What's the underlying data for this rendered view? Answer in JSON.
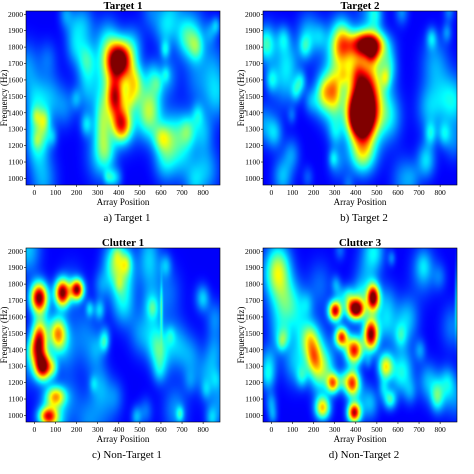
{
  "panels": [
    {
      "title": "Target 1",
      "caption": "a) Target 1",
      "xlabel": "Array Position",
      "ylabel": "Frequency (Hz)",
      "chart_data": {
        "type": "heatmap",
        "title": "Target 1",
        "xlabel": "Array Position",
        "ylabel": "Frequency (Hz)",
        "xticks": [
          0,
          100,
          200,
          300,
          400,
          500,
          600,
          700,
          800
        ],
        "yticks": [
          1000,
          1100,
          1200,
          1300,
          1400,
          1500,
          1600,
          1700,
          1800,
          1900,
          2000
        ],
        "xlim": [
          -40,
          880
        ],
        "ylim": [
          960,
          2020
        ],
        "colormap": "jet",
        "blobs": [
          {
            "x": 400,
            "y": 1720,
            "sx": 55,
            "sy": 110,
            "v": 0.95
          },
          {
            "x": 380,
            "y": 1500,
            "sx": 40,
            "sy": 120,
            "v": 0.7
          },
          {
            "x": 410,
            "y": 1330,
            "sx": 45,
            "sy": 100,
            "v": 0.6
          },
          {
            "x": 470,
            "y": 1580,
            "sx": 45,
            "sy": 120,
            "v": 0.45
          },
          {
            "x": 540,
            "y": 1400,
            "sx": 55,
            "sy": 150,
            "v": 0.4
          },
          {
            "x": 320,
            "y": 1350,
            "sx": 40,
            "sy": 200,
            "v": 0.35
          },
          {
            "x": 600,
            "y": 1250,
            "sx": 40,
            "sy": 80,
            "v": 0.25
          },
          {
            "x": 250,
            "y": 1600,
            "sx": 50,
            "sy": 200,
            "v": 0.2
          }
        ]
      }
    },
    {
      "title": "Target 2",
      "caption": "b) Target 2",
      "xlabel": "Array Position",
      "ylabel": "Frequency (Hz)",
      "chart_data": {
        "type": "heatmap",
        "title": "Target 2",
        "xlabel": "Array Position",
        "ylabel": "Frequency (Hz)",
        "xticks": [
          0,
          100,
          200,
          300,
          400,
          500,
          600,
          700,
          800
        ],
        "yticks": [
          1000,
          1100,
          1200,
          1300,
          1400,
          1500,
          1600,
          1700,
          1800,
          1900,
          2000
        ],
        "xlim": [
          -40,
          880
        ],
        "ylim": [
          960,
          2020
        ],
        "colormap": "jet",
        "blobs": [
          {
            "x": 440,
            "y": 1500,
            "sx": 85,
            "sy": 230,
            "v": 0.8
          },
          {
            "x": 450,
            "y": 1820,
            "sx": 80,
            "sy": 80,
            "v": 0.9
          },
          {
            "x": 420,
            "y": 1380,
            "sx": 55,
            "sy": 120,
            "v": 0.95
          },
          {
            "x": 430,
            "y": 1150,
            "sx": 60,
            "sy": 120,
            "v": 0.35
          },
          {
            "x": 300,
            "y": 1550,
            "sx": 30,
            "sy": 120,
            "v": 0.2
          }
        ]
      }
    },
    {
      "title": "Clutter 1",
      "caption": "c) Non-Target 1",
      "xlabel": "Array Position",
      "ylabel": "Frequency (Hz)",
      "chart_data": {
        "type": "heatmap",
        "title": "Clutter 1",
        "xlabel": "Array Position",
        "ylabel": "Frequency (Hz)",
        "xticks": [
          0,
          100,
          200,
          300,
          400,
          500,
          600,
          700,
          800
        ],
        "yticks": [
          1000,
          1100,
          1200,
          1300,
          1400,
          1500,
          1600,
          1700,
          1800,
          1900,
          2000
        ],
        "xlim": [
          -40,
          880
        ],
        "ylim": [
          960,
          2020
        ],
        "colormap": "jet",
        "blobs": [
          {
            "x": 20,
            "y": 1720,
            "sx": 40,
            "sy": 90,
            "v": 0.9
          },
          {
            "x": 130,
            "y": 1750,
            "sx": 35,
            "sy": 80,
            "v": 0.85
          },
          {
            "x": 200,
            "y": 1770,
            "sx": 30,
            "sy": 60,
            "v": 0.8
          },
          {
            "x": 20,
            "y": 1450,
            "sx": 35,
            "sy": 120,
            "v": 0.75
          },
          {
            "x": 40,
            "y": 1300,
            "sx": 40,
            "sy": 80,
            "v": 0.85
          },
          {
            "x": 110,
            "y": 1500,
            "sx": 40,
            "sy": 100,
            "v": 0.55
          },
          {
            "x": 100,
            "y": 1120,
            "sx": 45,
            "sy": 60,
            "v": 0.45
          },
          {
            "x": 60,
            "y": 1000,
            "sx": 40,
            "sy": 50,
            "v": 0.5
          },
          {
            "x": 600,
            "y": 1650,
            "sx": 6,
            "sy": 150,
            "v": 0.2
          }
        ]
      }
    },
    {
      "title": "Clutter 3",
      "caption": "d) Non-Target 2",
      "xlabel": "Array Position",
      "ylabel": "Frequency (Hz)",
      "chart_data": {
        "type": "heatmap",
        "title": "Clutter 3",
        "xlabel": "Array Position",
        "ylabel": "Frequency (Hz)",
        "xticks": [
          0,
          100,
          200,
          300,
          400,
          500,
          600,
          700,
          800
        ],
        "yticks": [
          1000,
          1100,
          1200,
          1300,
          1400,
          1500,
          1600,
          1700,
          1800,
          1900,
          2000
        ],
        "xlim": [
          -40,
          880
        ],
        "ylim": [
          960,
          2020
        ],
        "colormap": "jet",
        "blobs": [
          {
            "x": 400,
            "y": 1650,
            "sx": 40,
            "sy": 60,
            "v": 0.85
          },
          {
            "x": 300,
            "y": 1640,
            "sx": 30,
            "sy": 60,
            "v": 0.8
          },
          {
            "x": 480,
            "y": 1720,
            "sx": 30,
            "sy": 80,
            "v": 0.9
          },
          {
            "x": 470,
            "y": 1500,
            "sx": 35,
            "sy": 100,
            "v": 0.8
          },
          {
            "x": 390,
            "y": 1400,
            "sx": 40,
            "sy": 80,
            "v": 0.75
          },
          {
            "x": 330,
            "y": 1480,
            "sx": 30,
            "sy": 60,
            "v": 0.7
          },
          {
            "x": 380,
            "y": 1200,
            "sx": 35,
            "sy": 80,
            "v": 0.7
          },
          {
            "x": 290,
            "y": 1200,
            "sx": 30,
            "sy": 60,
            "v": 0.6
          },
          {
            "x": 390,
            "y": 1020,
            "sx": 30,
            "sy": 60,
            "v": 0.8
          },
          {
            "x": 240,
            "y": 1050,
            "sx": 35,
            "sy": 70,
            "v": 0.55
          },
          {
            "x": 540,
            "y": 1300,
            "sx": 35,
            "sy": 80,
            "v": 0.5
          },
          {
            "x": 200,
            "y": 1350,
            "sx": 35,
            "sy": 100,
            "v": 0.35
          },
          {
            "x": 560,
            "y": 1100,
            "sx": 30,
            "sy": 60,
            "v": 0.3
          },
          {
            "x": 880,
            "y": 1700,
            "sx": 10,
            "sy": 200,
            "v": 0.3
          }
        ]
      }
    }
  ]
}
